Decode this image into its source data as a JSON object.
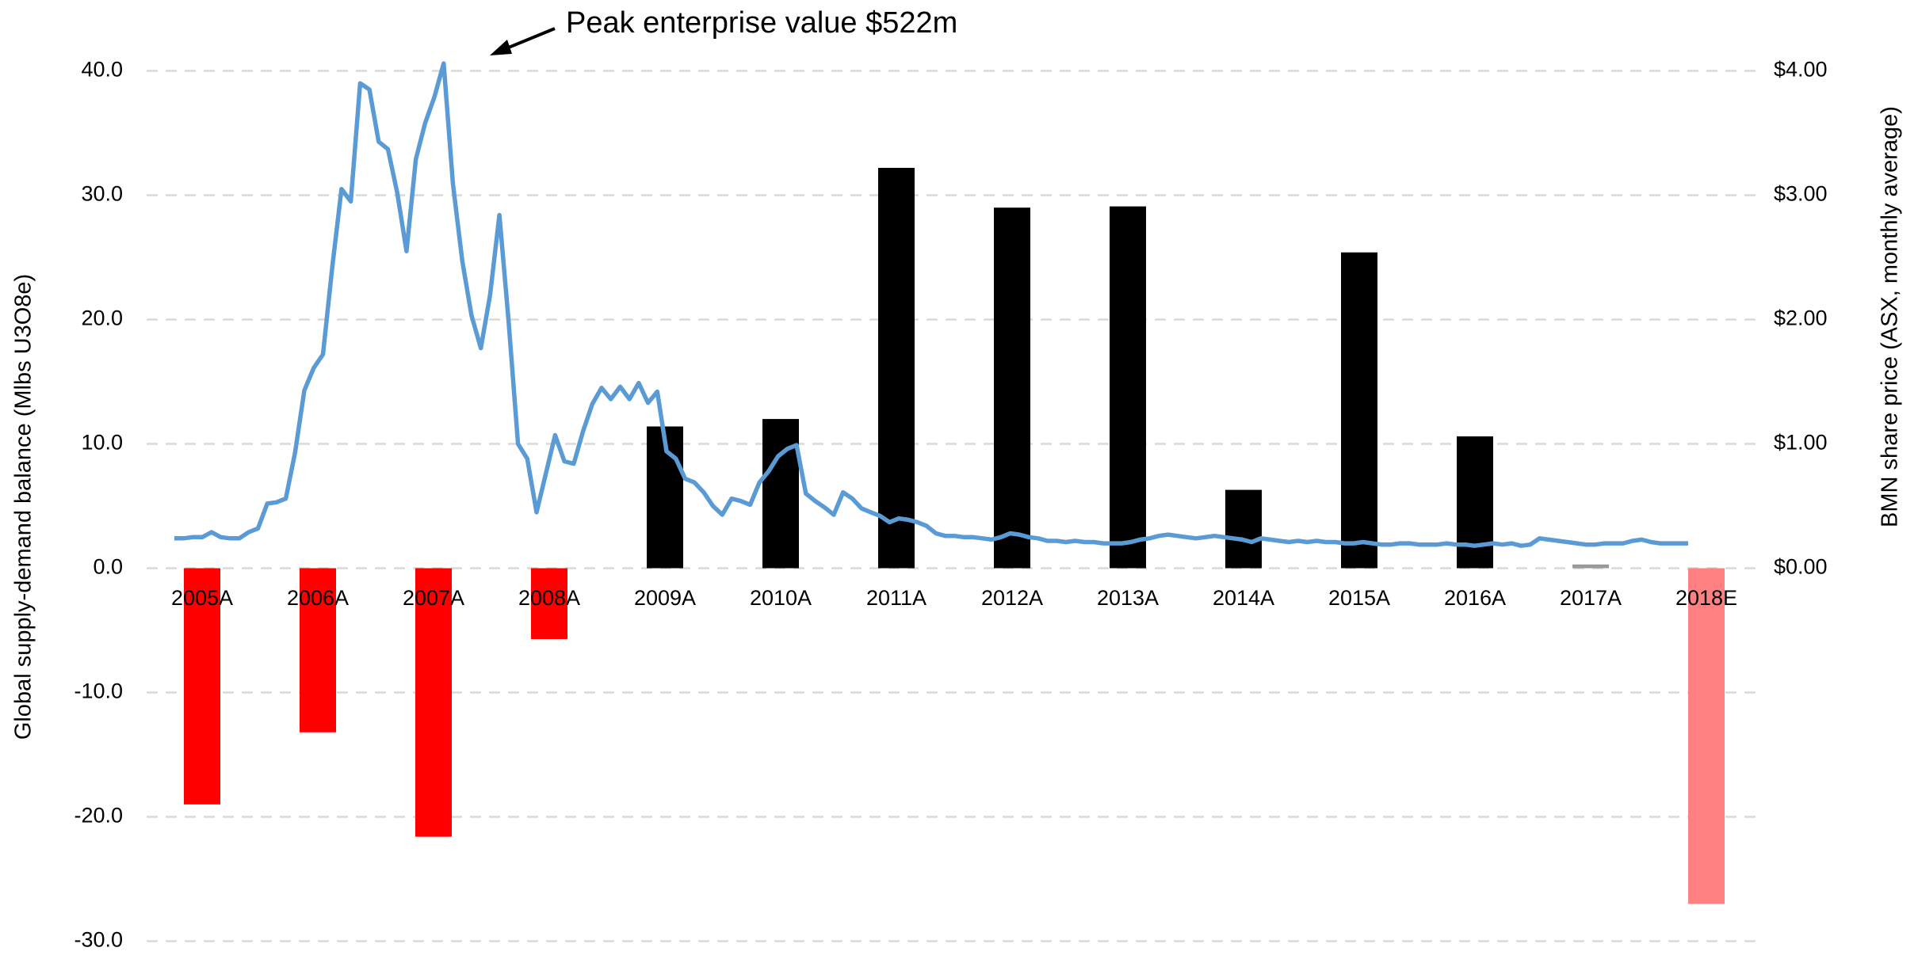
{
  "chart_data": {
    "type": "bar",
    "y_label": "Global supply-demand  balance (Mlbs U3O8e)",
    "y2_label": "BMN share price (ASX, monthly average)",
    "annotation": "Peak enterprise value $522m",
    "categories": [
      "2005A",
      "2006A",
      "2007A",
      "2008A",
      "2009A",
      "2010A",
      "2011A",
      "2012A",
      "2013A",
      "2014A",
      "2015A",
      "2016A",
      "2017A",
      "2018E"
    ],
    "values": [
      -19.0,
      -13.2,
      -21.6,
      -5.7,
      11.4,
      12.0,
      32.2,
      29.0,
      29.1,
      6.3,
      25.4,
      10.6,
      0.3,
      -27.0
    ],
    "colors": [
      "#ff0000",
      "#ff0000",
      "#ff0000",
      "#ff0000",
      "#000000",
      "#000000",
      "#000000",
      "#000000",
      "#000000",
      "#000000",
      "#000000",
      "#000000",
      "#999999",
      "#ff8080"
    ],
    "ylim": [
      -30,
      40
    ],
    "yticks": [
      {
        "value": -30,
        "label": "-30.0"
      },
      {
        "value": -20,
        "label": "-20.0"
      },
      {
        "value": -10,
        "label": "-10.0"
      },
      {
        "value": 0,
        "label": "0.0"
      },
      {
        "value": 10,
        "label": "10.0"
      },
      {
        "value": 20,
        "label": "20.0"
      },
      {
        "value": 30,
        "label": "30.0"
      },
      {
        "value": 40,
        "label": "40.0"
      }
    ],
    "y2lim": [
      -3,
      4
    ],
    "y2ticks": [
      {
        "value": 0,
        "label": "$0.00"
      },
      {
        "value": 1,
        "label": "$1.00"
      },
      {
        "value": 2,
        "label": "$2.00"
      },
      {
        "value": 3,
        "label": "$3.00"
      },
      {
        "value": 4,
        "label": "$4.00"
      }
    ],
    "grid": true,
    "line": {
      "type": "line",
      "axis": "y2",
      "color": "#5b9bd5",
      "values": [
        0.24,
        0.24,
        0.25,
        0.25,
        0.29,
        0.25,
        0.24,
        0.24,
        0.29,
        0.32,
        0.52,
        0.53,
        0.56,
        0.93,
        1.43,
        1.61,
        1.72,
        2.42,
        3.05,
        2.95,
        3.9,
        3.85,
        3.43,
        3.37,
        3.02,
        2.55,
        3.29,
        3.58,
        3.79,
        4.06,
        3.09,
        2.47,
        2.03,
        1.77,
        2.2,
        2.84,
        1.98,
        1.0,
        0.88,
        0.45,
        0.76,
        1.07,
        0.86,
        0.84,
        1.1,
        1.32,
        1.45,
        1.36,
        1.46,
        1.36,
        1.49,
        1.33,
        1.42,
        0.94,
        0.88,
        0.72,
        0.69,
        0.61,
        0.5,
        0.43,
        0.56,
        0.54,
        0.51,
        0.69,
        0.78,
        0.9,
        0.96,
        0.99,
        0.6,
        0.54,
        0.49,
        0.43,
        0.61,
        0.56,
        0.48,
        0.45,
        0.42,
        0.37,
        0.4,
        0.39,
        0.37,
        0.34,
        0.28,
        0.26,
        0.26,
        0.25,
        0.25,
        0.24,
        0.23,
        0.25,
        0.28,
        0.27,
        0.25,
        0.24,
        0.22,
        0.22,
        0.21,
        0.22,
        0.21,
        0.21,
        0.2,
        0.2,
        0.2,
        0.21,
        0.23,
        0.24,
        0.26,
        0.27,
        0.26,
        0.25,
        0.24,
        0.25,
        0.26,
        0.25,
        0.24,
        0.23,
        0.21,
        0.24,
        0.23,
        0.22,
        0.21,
        0.22,
        0.21,
        0.22,
        0.21,
        0.21,
        0.2,
        0.2,
        0.21,
        0.2,
        0.19,
        0.19,
        0.2,
        0.2,
        0.19,
        0.19,
        0.19,
        0.2,
        0.19,
        0.19,
        0.18,
        0.19,
        0.2,
        0.19,
        0.2,
        0.18,
        0.19,
        0.24,
        0.23,
        0.22,
        0.21,
        0.2,
        0.19,
        0.19,
        0.2,
        0.2,
        0.2,
        0.22,
        0.23,
        0.21,
        0.2,
        0.2,
        0.2,
        0.2
      ]
    }
  }
}
